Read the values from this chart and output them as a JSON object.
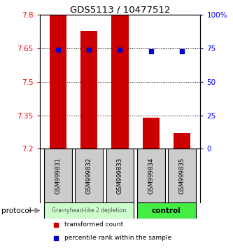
{
  "title": "GDS5113 / 10477512",
  "samples": [
    "GSM999831",
    "GSM999832",
    "GSM999833",
    "GSM999834",
    "GSM999835"
  ],
  "bar_bottom": 7.2,
  "bar_tops": [
    7.8,
    7.73,
    7.8,
    7.34,
    7.27
  ],
  "percentile_values": [
    7.645,
    7.645,
    7.645,
    7.638,
    7.638
  ],
  "ylim": [
    7.2,
    7.8
  ],
  "yticks": [
    7.2,
    7.35,
    7.5,
    7.65,
    7.8
  ],
  "ytick_labels": [
    "7.2",
    "7.35",
    "7.5",
    "7.65",
    "7.8"
  ],
  "y2ticks_pct": [
    0,
    25,
    50,
    75,
    100
  ],
  "y2tick_labels": [
    "0",
    "25",
    "50",
    "75",
    "100%"
  ],
  "bar_color": "#cc0000",
  "point_color": "#0000cc",
  "group1_color": "#ccffcc",
  "group2_color": "#44ee44",
  "group1_label": "Grainyhead-like 2 depletion",
  "group2_label": "control",
  "group1_indices": [
    0,
    1,
    2
  ],
  "group2_indices": [
    3,
    4
  ],
  "red_tick_color": "red",
  "blue_tick_color": "blue",
  "legend_red_label": "transformed count",
  "legend_blue_label": "percentile rank within the sample",
  "protocol_label": "protocol",
  "bar_width": 0.55,
  "sample_bg_color": "#cccccc",
  "arrow_color": "#888888"
}
